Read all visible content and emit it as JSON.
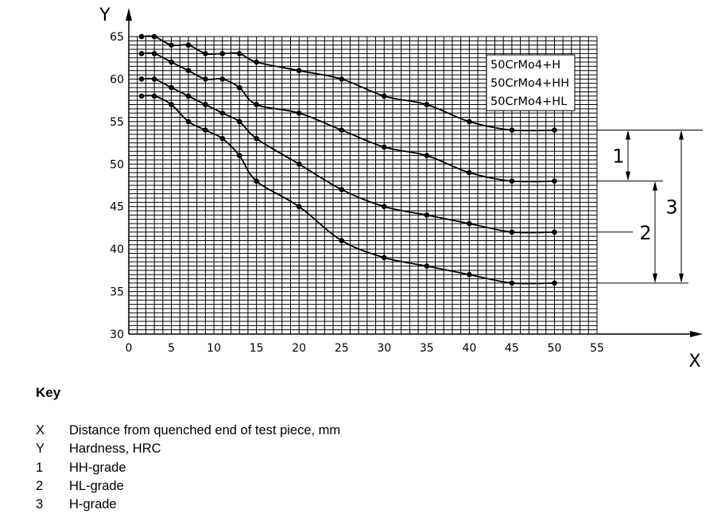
{
  "chart_data": {
    "type": "line",
    "x_axis_letter": "X",
    "y_axis_letter": "Y",
    "xlim": [
      0,
      55
    ],
    "ylim": [
      30,
      65
    ],
    "x_ticks": [
      0,
      5,
      10,
      15,
      20,
      25,
      30,
      35,
      40,
      45,
      50,
      55
    ],
    "y_ticks": [
      30,
      35,
      40,
      45,
      50,
      55,
      60,
      65
    ],
    "grid": true,
    "legend_placement": "top-right",
    "legend": [
      "50CrMo4+H",
      "50CrMo4+HH",
      "50CrMo4+HL"
    ],
    "series": [
      {
        "x": [
          1.5,
          3,
          5,
          7,
          9,
          11,
          13,
          15,
          20,
          25,
          30,
          35,
          40,
          45,
          50
        ],
        "y": [
          65,
          65,
          64,
          64,
          63,
          63,
          63,
          62,
          61,
          60,
          58,
          57,
          55,
          54,
          54
        ]
      },
      {
        "x": [
          1.5,
          3,
          5,
          7,
          9,
          11,
          13,
          15,
          20,
          25,
          30,
          35,
          40,
          45,
          50
        ],
        "y": [
          63,
          63,
          62,
          61,
          60,
          60,
          59,
          57,
          56,
          54,
          52,
          51,
          49,
          48,
          48
        ]
      },
      {
        "x": [
          1.5,
          3,
          5,
          7,
          9,
          11,
          13,
          15,
          20,
          25,
          30,
          35,
          40,
          45,
          50
        ],
        "y": [
          60,
          60,
          59,
          58,
          57,
          56,
          55,
          53,
          50,
          47,
          45,
          44,
          43,
          42,
          42
        ]
      },
      {
        "x": [
          1.5,
          3,
          5,
          7,
          9,
          11,
          13,
          15,
          20,
          25,
          30,
          35,
          40,
          45,
          50
        ],
        "y": [
          58,
          58,
          57,
          55,
          54,
          53,
          51,
          48,
          45,
          41,
          39,
          38,
          37,
          36,
          36
        ]
      }
    ],
    "ranges": [
      {
        "label": "1",
        "from": 54,
        "to": 48
      },
      {
        "label": "2",
        "from": 48,
        "to": 36
      },
      {
        "label": "3",
        "from": 54,
        "to": 36
      }
    ]
  },
  "key": {
    "title": "Key",
    "items": [
      {
        "symbol": "X",
        "text": "Distance from quenched end of test piece, mm"
      },
      {
        "symbol": "Y",
        "text": "Hardness, HRC"
      },
      {
        "symbol": "1",
        "text": "HH-grade"
      },
      {
        "symbol": "2",
        "text": "HL-grade"
      },
      {
        "symbol": "3",
        "text": "H-grade"
      }
    ]
  }
}
